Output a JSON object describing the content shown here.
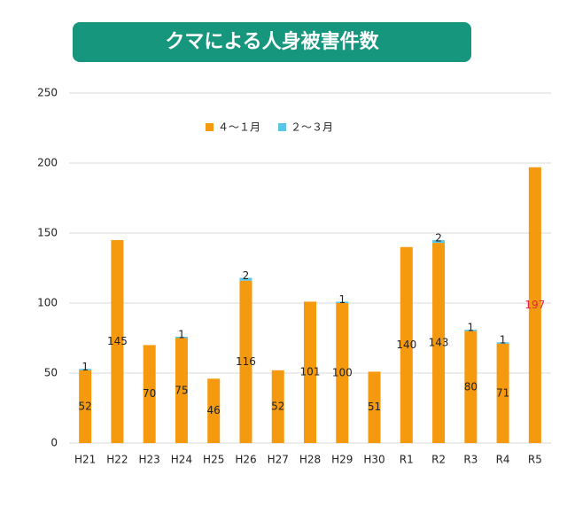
{
  "chart_data": {
    "type": "stacked-bar",
    "title": "クマによる人身被害件数",
    "categories": [
      "H21",
      "H22",
      "H23",
      "H24",
      "H25",
      "H26",
      "H27",
      "H28",
      "H29",
      "H30",
      "R1",
      "R2",
      "R3",
      "R4",
      "R5"
    ],
    "series": [
      {
        "name": "４～１月",
        "color": "#f59a0e",
        "values": [
          52,
          145,
          70,
          75,
          46,
          116,
          52,
          101,
          100,
          51,
          140,
          143,
          80,
          71,
          197
        ]
      },
      {
        "name": "２～３月",
        "color": "#5bc5e6",
        "values": [
          1,
          null,
          null,
          1,
          null,
          2,
          null,
          null,
          1,
          null,
          null,
          2,
          1,
          1,
          null
        ]
      }
    ],
    "ylim": [
      0,
      250
    ],
    "yticks": [
      0,
      50,
      100,
      150,
      200,
      250
    ],
    "grid": true,
    "highlight": {
      "index": 14,
      "color": "#e8203a"
    }
  }
}
